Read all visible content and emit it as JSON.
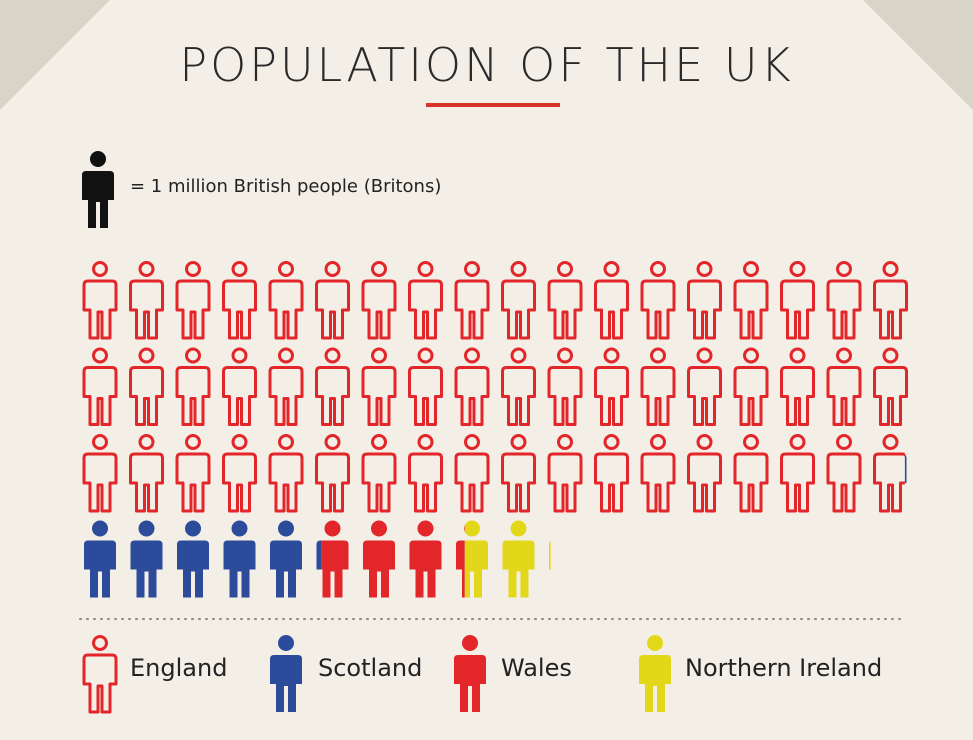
{
  "colors": {
    "page": "#f3efe7",
    "background": "#d9d3c8",
    "title_rule": "#d9342b",
    "key_icon": "#111111",
    "dotted_line": "#888888"
  },
  "header": {
    "title": "POPULATION OF THE UK"
  },
  "key": {
    "icon": "person-icon",
    "text": "= 1 million British people (Britons)"
  },
  "chart_data": {
    "type": "pictogram",
    "unit": "1 million British people (Britons)",
    "icons_per_row": 18,
    "series": [
      {
        "name": "England",
        "value": 53.9,
        "color": "#e3262a",
        "style": "outline"
      },
      {
        "name": "Scotland",
        "value": 5.3,
        "color": "#2d4b9b",
        "style": "solid"
      },
      {
        "name": "Wales",
        "value": 3.1,
        "color": "#e2262a",
        "style": "solid"
      },
      {
        "name": "Northern Ireland",
        "value": 1.8,
        "color": "#e3d71a",
        "style": "solid"
      }
    ]
  },
  "legend": [
    {
      "label": "England",
      "icon": "person-outline-icon",
      "color": "#e3262a",
      "style": "outline"
    },
    {
      "label": "Scotland",
      "icon": "person-icon",
      "color": "#2d4b9b",
      "style": "solid"
    },
    {
      "label": "Wales",
      "icon": "person-icon",
      "color": "#e2262a",
      "style": "solid"
    },
    {
      "label": "Northern Ireland",
      "icon": "person-icon",
      "color": "#e3d71a",
      "style": "solid"
    }
  ]
}
